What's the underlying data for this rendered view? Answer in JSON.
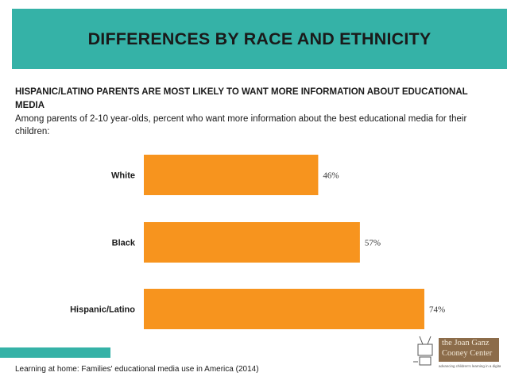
{
  "header": {
    "title": "DIFFERENCES BY RACE AND ETHNICITY"
  },
  "subheading": "HISPANIC/LATINO PARENTS ARE MOST LIKELY TO WANT MORE INFORMATION ABOUT EDUCATIONAL MEDIA",
  "description": "Among parents of 2-10 year-olds, percent who want more information about the best educational media for their children:",
  "source": "Learning at home: Families' educational media use in America (2014)",
  "logo": {
    "text": "the Joan Ganz Cooney Center",
    "tagline": "advancing children's learning in a digital age"
  },
  "colors": {
    "accent": "#35b2a7",
    "bar": "#f7941e"
  },
  "chart_data": {
    "type": "bar",
    "orientation": "horizontal",
    "categories": [
      "White",
      "Black",
      "Hispanic/Latino"
    ],
    "values": [
      46,
      57,
      74
    ],
    "value_labels": [
      "46%",
      "57%",
      "74%"
    ],
    "xlim": [
      0,
      100
    ],
    "title": "",
    "xlabel": "",
    "ylabel": ""
  }
}
